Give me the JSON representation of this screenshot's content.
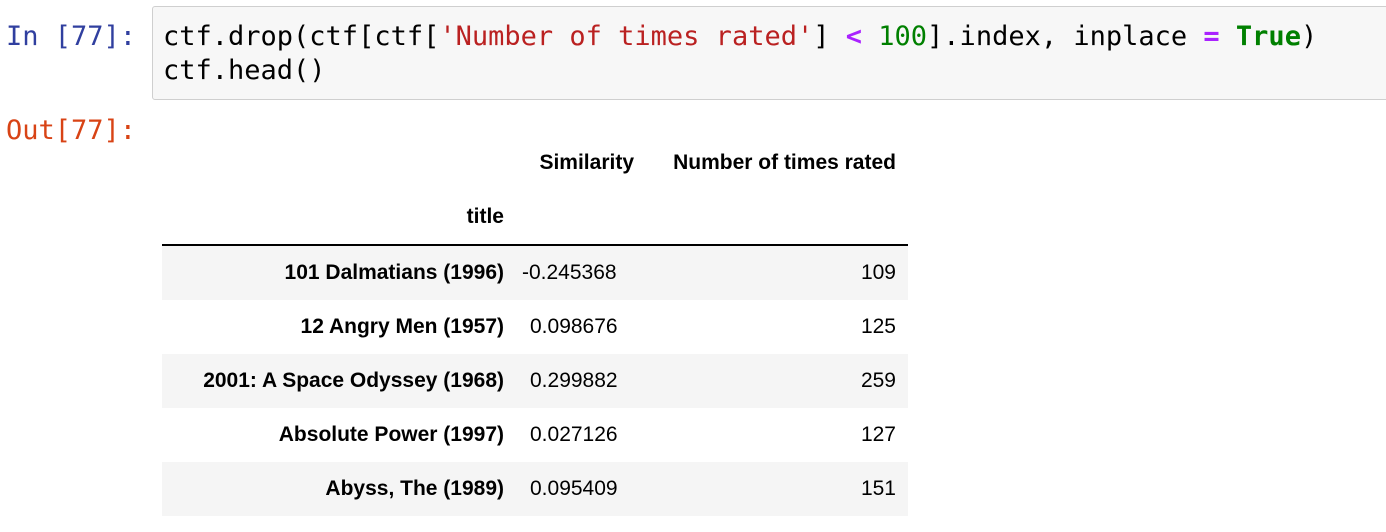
{
  "input_prompt": "In [77]:",
  "output_prompt": "Out[77]:",
  "code": {
    "line1": {
      "p1": "ctf.drop(ctf[ctf[",
      "str": "'Number of times rated'",
      "p2": "] ",
      "op1": "<",
      "sp1": " ",
      "num": "100",
      "p3": "].index, inplace ",
      "op2": "=",
      "sp2": " ",
      "kw": "True",
      "p4": ")"
    },
    "line2": "ctf.head()"
  },
  "table": {
    "columns": [
      "Similarity",
      "Number of times rated"
    ],
    "index_name": "title",
    "rows": [
      {
        "title": "101 Dalmatians (1996)",
        "similarity": "-0.245368",
        "rated": "109"
      },
      {
        "title": "12 Angry Men (1957)",
        "similarity": "0.098676",
        "rated": "125"
      },
      {
        "title": "2001: A Space Odyssey (1968)",
        "similarity": "0.299882",
        "rated": "259"
      },
      {
        "title": "Absolute Power (1997)",
        "similarity": "0.027126",
        "rated": "127"
      },
      {
        "title": "Abyss, The (1989)",
        "similarity": "0.095409",
        "rated": "151"
      }
    ]
  }
}
